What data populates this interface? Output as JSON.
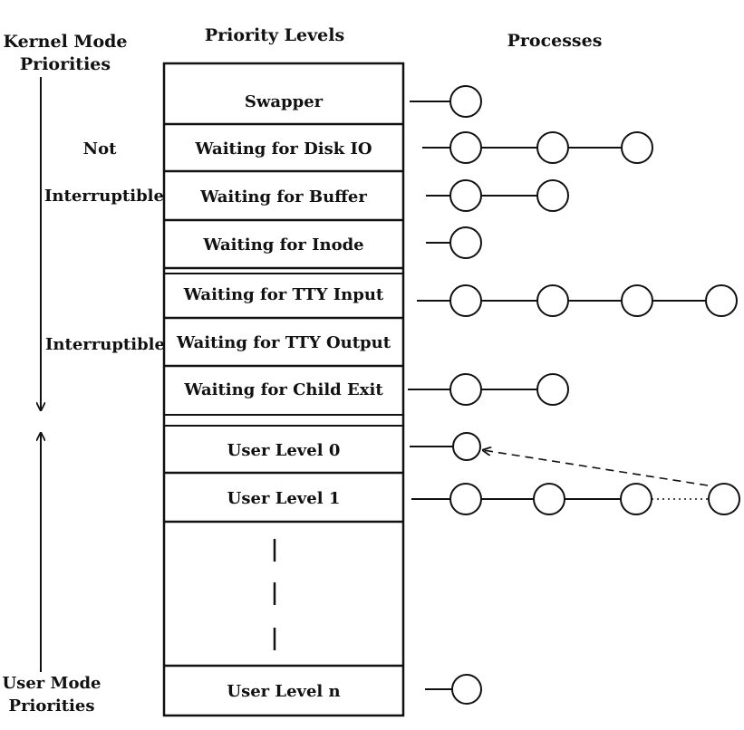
{
  "headers": {
    "kernel_mode_line1": "Kernel Mode",
    "kernel_mode_line2": "Priorities",
    "priority_levels": "Priority Levels",
    "processes": "Processes"
  },
  "side_labels": {
    "not": "Not",
    "interruptible_upper": "Interruptible",
    "interruptible_lower": "Interruptible",
    "user_mode_line1": "User Mode",
    "user_mode_line2": "Priorities"
  },
  "levels": [
    {
      "label": "Swapper",
      "process_count": 1
    },
    {
      "label": "Waiting for Disk IO",
      "process_count": 3
    },
    {
      "label": "Waiting for Buffer",
      "process_count": 2
    },
    {
      "label": "Waiting for Inode",
      "process_count": 1
    },
    {
      "label": "Waiting for TTY Input",
      "process_count": 4
    },
    {
      "label": "Waiting for TTY Output",
      "process_count": 0
    },
    {
      "label": "Waiting for Child Exit",
      "process_count": 2
    },
    {
      "label": "User Level 0",
      "process_count": 1
    },
    {
      "label": "User Level 1",
      "process_count": 4
    },
    {
      "label": "User Level n",
      "process_count": 1
    }
  ],
  "colors": {
    "ink": "#111111",
    "background": "#ffffff"
  }
}
